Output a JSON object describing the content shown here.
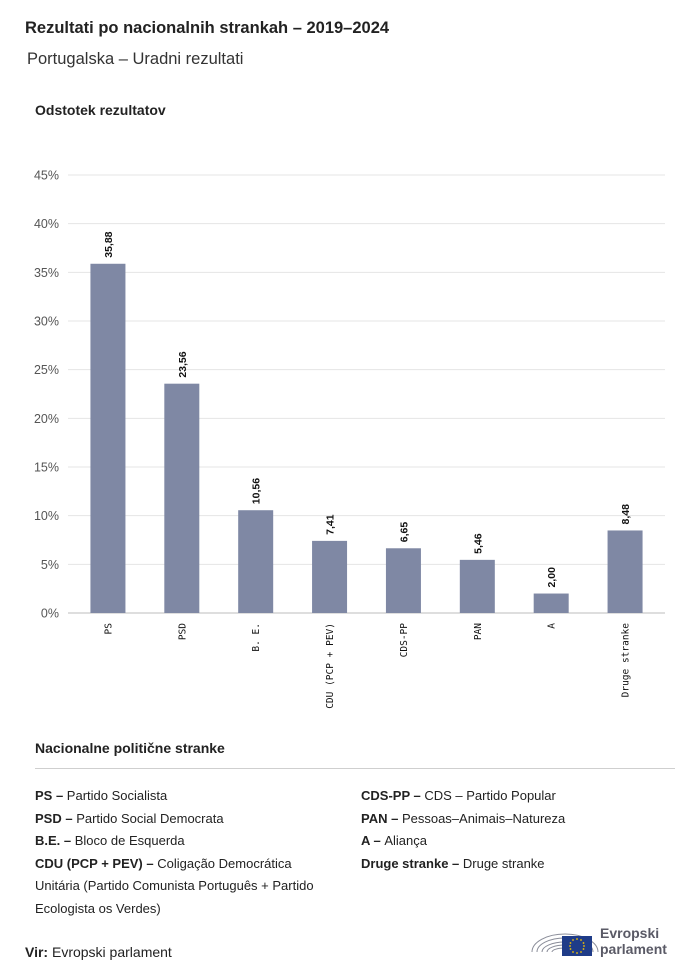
{
  "header": {
    "title": "Rezultati po nacionalnih strankah – 2019–2024",
    "subtitle": "Portugalska – Uradni rezultati"
  },
  "chart_data": {
    "type": "bar",
    "ylabel": "Odstotek rezultatov",
    "categories": [
      "PS",
      "PSD",
      "B. E.",
      "CDU (PCP + PEV)",
      "CDS-PP",
      "PAN",
      "A",
      "Druge stranke"
    ],
    "values": [
      35.88,
      23.56,
      10.56,
      7.41,
      6.65,
      5.46,
      2.0,
      8.48
    ],
    "value_labels": [
      "35,88",
      "23,56",
      "10,56",
      "7,41",
      "6,65",
      "5,46",
      "2,00",
      "8,48"
    ],
    "ylim": [
      0,
      45
    ],
    "yticks": [
      "0%",
      "5%",
      "10%",
      "15%",
      "20%",
      "25%",
      "30%",
      "35%",
      "40%",
      "45%"
    ],
    "grid": true,
    "bar_color": "#7f88a4"
  },
  "legend": {
    "title": "Nacionalne politične stranke",
    "left": [
      {
        "abbr": "PS – ",
        "full": "Partido Socialista"
      },
      {
        "abbr": "PSD – ",
        "full": "Partido Social Democrata"
      },
      {
        "abbr": "B.E. – ",
        "full": "Bloco de Esquerda"
      },
      {
        "abbr": "CDU (PCP + PEV) – ",
        "full": "Coligação Democrática Unitária (Partido Comunista Português + Partido Ecologista os Verdes)"
      }
    ],
    "right": [
      {
        "abbr": "CDS-PP – ",
        "full": "CDS – Partido Popular"
      },
      {
        "abbr": "PAN – ",
        "full": "Pessoas–Animais–Natureza"
      },
      {
        "abbr": "A – ",
        "full": "Aliança"
      },
      {
        "abbr": "Druge stranke – ",
        "full": "Druge stranke"
      }
    ]
  },
  "footer": {
    "source_label": "Vir:",
    "source_text": "Evropski parlament",
    "logo_line1": "Evropski",
    "logo_line2": "parlament",
    "logo_icon": "european-parliament-logo-icon"
  }
}
